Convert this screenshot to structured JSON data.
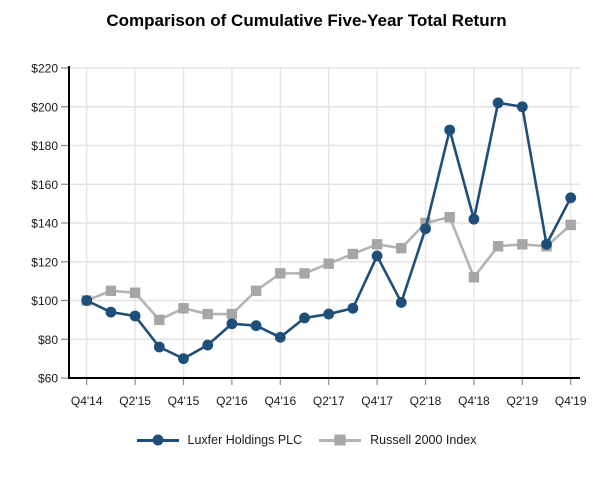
{
  "chart_data": {
    "type": "line",
    "title": "Comparison of Cumulative Five-Year Total Return",
    "ylim": [
      60,
      220
    ],
    "ytick_step": 20,
    "y_tick_labels": [
      "$220",
      "$200",
      "$180",
      "$160",
      "$140",
      "$120",
      "$100",
      "$80",
      "$60"
    ],
    "x_tick_labels": [
      "Q4'14",
      "Q2'15",
      "Q4'15",
      "Q2'16",
      "Q4'16",
      "Q2'17",
      "Q4'17",
      "Q2'18",
      "Q4'18",
      "Q2'19",
      "Q4'19"
    ],
    "x_categories": [
      "Q4'14",
      "Q1'15",
      "Q2'15",
      "Q3'15",
      "Q4'15",
      "Q1'16",
      "Q2'16",
      "Q3'16",
      "Q4'16",
      "Q1'17",
      "Q2'17",
      "Q3'17",
      "Q4'17",
      "Q1'18",
      "Q2'18",
      "Q3'18",
      "Q4'18",
      "Q1'19",
      "Q2'19",
      "Q3'19",
      "Q4'19"
    ],
    "grid": true,
    "legend_position": "bottom",
    "series": [
      {
        "name": "Luxfer Holdings PLC",
        "marker": "circle",
        "color": "#1F4E79",
        "line_color": "#1F4E79",
        "values": [
          100,
          94,
          92,
          76,
          70,
          77,
          88,
          87,
          81,
          91,
          93,
          96,
          123,
          99,
          137,
          188,
          142,
          202,
          200,
          129,
          153
        ]
      },
      {
        "name": "Russell 2000 Index",
        "marker": "square",
        "color": "#A6A6A6",
        "line_color": "#B3B3B3",
        "values": [
          100,
          105,
          104,
          90,
          96,
          93,
          93,
          105,
          114,
          114,
          119,
          124,
          129,
          127,
          140,
          143,
          112,
          128,
          129,
          128,
          139
        ]
      }
    ],
    "styles": {
      "background": "#FFFFFF",
      "grid_color": "#E4E4E4",
      "axis_color": "#000000",
      "tick_color": "#8C8C8C",
      "text_color": "#1A1A1A"
    }
  }
}
